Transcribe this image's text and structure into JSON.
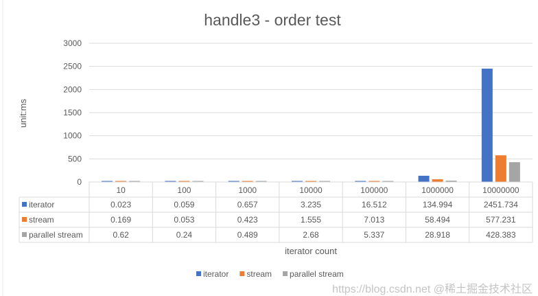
{
  "chart_data": {
    "type": "bar",
    "title": "handle3 - order test",
    "xlabel": "iterator count",
    "ylabel": "unit:ms",
    "ylim": [
      0,
      3000
    ],
    "yticks": [
      "0",
      "500",
      "1000",
      "1500",
      "2000",
      "2500",
      "3000"
    ],
    "grid": true,
    "legend_position": "bottom",
    "data_table": true,
    "categories": [
      "10",
      "100",
      "1000",
      "10000",
      "100000",
      "1000000",
      "10000000"
    ],
    "series": [
      {
        "name": "iterator",
        "color": "#4472C4",
        "values": [
          0.023,
          0.059,
          0.657,
          3.235,
          16.512,
          134.994,
          2451.734
        ],
        "labels": [
          "0.023",
          "0.059",
          "0.657",
          "3.235",
          "16.512",
          "134.994",
          "2451.734"
        ]
      },
      {
        "name": "stream",
        "color": "#ED7D31",
        "values": [
          0.169,
          0.053,
          0.423,
          1.555,
          7.013,
          58.494,
          577.231
        ],
        "labels": [
          "0.169",
          "0.053",
          "0.423",
          "1.555",
          "7.013",
          "58.494",
          "577.231"
        ]
      },
      {
        "name": "parallel stream",
        "color": "#A5A5A5",
        "values": [
          0.62,
          0.24,
          0.489,
          2.68,
          5.337,
          28.918,
          428.383
        ],
        "labels": [
          "0.62",
          "0.24",
          "0.489",
          "2.68",
          "5.337",
          "28.918",
          "428.383"
        ]
      }
    ]
  },
  "watermark": "https://blog.csdn.net  @稀土掘金技术社区"
}
